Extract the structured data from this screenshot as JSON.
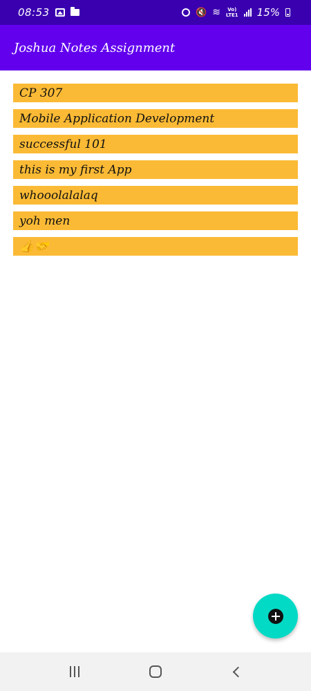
{
  "status_bar": {
    "time": "08:53",
    "battery": "15%",
    "lte_label": "VoLTE LTE1",
    "icons": [
      "image-icon",
      "folder-icon",
      "alarm-icon",
      "mute-icon",
      "wifi-icon",
      "lte-icon",
      "signal-icon",
      "battery-icon"
    ]
  },
  "app_bar": {
    "title": "Joshua Notes Assignment",
    "color": "#6200ee"
  },
  "notes": [
    "CP 307",
    "Mobile Application Development",
    "successful 101",
    "this is my first App",
    "whooolalalaq",
    "yoh men",
    "👍🤝"
  ],
  "fab": {
    "icon": "add-icon",
    "color": "#03dac5"
  },
  "nav_bar": {
    "buttons": [
      "recents-icon",
      "home-icon",
      "back-icon"
    ]
  },
  "colors": {
    "status_bar": "#3a00b0",
    "note_background": "#fbba35"
  }
}
